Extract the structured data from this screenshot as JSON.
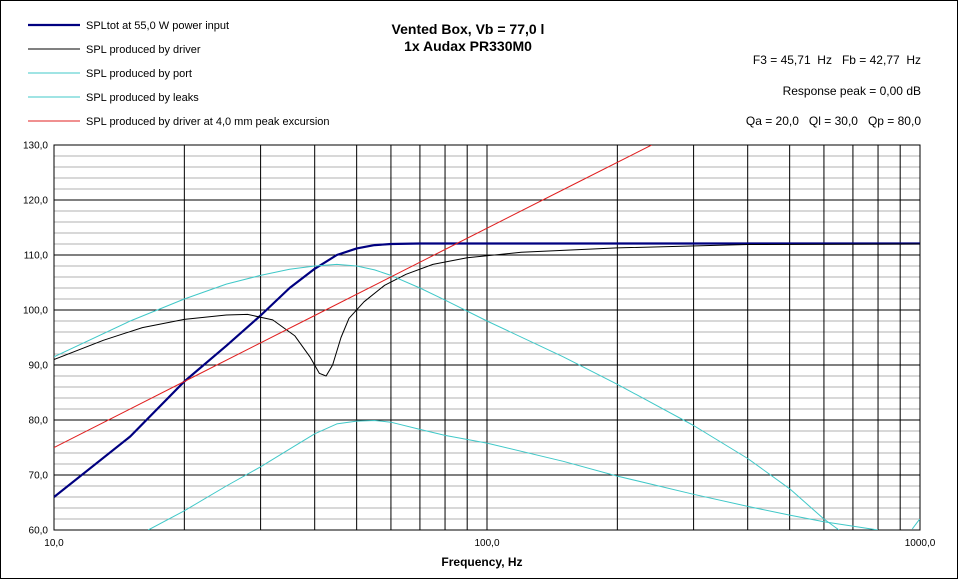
{
  "chart_data": {
    "type": "line",
    "title": "Vented Box, Vb = 77,0 l",
    "subtitle": "1x Audax PR330M0",
    "xlabel": "Frequency, Hz",
    "ylabel": "",
    "x_scale": "log",
    "xlim": [
      10,
      1000
    ],
    "ylim": [
      60,
      130
    ],
    "x_ticks": [
      {
        "value": 10,
        "label": "10,0"
      },
      {
        "value": 100,
        "label": "100,0"
      },
      {
        "value": 1000,
        "label": "1000,0"
      }
    ],
    "y_ticks": [
      {
        "value": 130,
        "label": "130,0"
      },
      {
        "value": 120,
        "label": "120,0"
      },
      {
        "value": 110,
        "label": "110,0"
      },
      {
        "value": 100,
        "label": "100,0"
      },
      {
        "value": 90,
        "label": "90,0"
      },
      {
        "value": 80,
        "label": "80,0"
      },
      {
        "value": 70,
        "label": "70,0"
      },
      {
        "value": 60,
        "label": "60,0"
      }
    ],
    "grid": true,
    "legend_position": "top-left",
    "info_lines": [
      "F3 = 45,71  Hz   Fb = 42,77  Hz",
      "Response peak = 0,00 dB",
      "Qa = 20,0   Ql = 30,0   Qp = 80,0"
    ],
    "series": [
      {
        "name": "SPLtot at 55,0 W power input",
        "color": "#000080",
        "points": [
          [
            10,
            66
          ],
          [
            15,
            77
          ],
          [
            20,
            87
          ],
          [
            25,
            93.5
          ],
          [
            30,
            99
          ],
          [
            35,
            104
          ],
          [
            40,
            107.5
          ],
          [
            45,
            110
          ],
          [
            50,
            111.2
          ],
          [
            55,
            111.8
          ],
          [
            60,
            112
          ],
          [
            70,
            112.1
          ],
          [
            100,
            112.1
          ],
          [
            200,
            112.1
          ],
          [
            500,
            112.1
          ],
          [
            1000,
            112.1
          ]
        ]
      },
      {
        "name": "SPL produced by driver",
        "color": "#000000",
        "points": [
          [
            10,
            91
          ],
          [
            13,
            94.5
          ],
          [
            16,
            96.8
          ],
          [
            20,
            98.3
          ],
          [
            25,
            99.1
          ],
          [
            28,
            99.2
          ],
          [
            32,
            98.2
          ],
          [
            36,
            95.3
          ],
          [
            39,
            91.5
          ],
          [
            41,
            88.5
          ],
          [
            42.5,
            88
          ],
          [
            44,
            90
          ],
          [
            46,
            95
          ],
          [
            48,
            98.5
          ],
          [
            52,
            101.5
          ],
          [
            58,
            104.5
          ],
          [
            65,
            106.5
          ],
          [
            75,
            108.3
          ],
          [
            90,
            109.5
          ],
          [
            120,
            110.5
          ],
          [
            200,
            111.3
          ],
          [
            400,
            111.9
          ],
          [
            1000,
            112
          ]
        ]
      },
      {
        "name": "SPL produced by port",
        "color": "#40C8C8",
        "points": [
          [
            10,
            91.5
          ],
          [
            15,
            98
          ],
          [
            20,
            102
          ],
          [
            25,
            104.7
          ],
          [
            30,
            106.3
          ],
          [
            35,
            107.4
          ],
          [
            40,
            108
          ],
          [
            45,
            108.3
          ],
          [
            50,
            108
          ],
          [
            55,
            107.3
          ],
          [
            60,
            106.3
          ],
          [
            70,
            104
          ],
          [
            80,
            101.8
          ],
          [
            100,
            98
          ],
          [
            150,
            91.5
          ],
          [
            200,
            86.5
          ],
          [
            300,
            79
          ],
          [
            400,
            73
          ],
          [
            500,
            67.5
          ],
          [
            600,
            62
          ],
          [
            650,
            60
          ]
        ]
      },
      {
        "name": "SPL produced by leaks",
        "color": "#40C8C8",
        "points": [
          [
            16.5,
            60
          ],
          [
            20,
            63.5
          ],
          [
            25,
            68
          ],
          [
            30,
            71.5
          ],
          [
            35,
            74.7
          ],
          [
            40,
            77.5
          ],
          [
            45,
            79.3
          ],
          [
            50,
            79.8
          ],
          [
            55,
            79.9
          ],
          [
            60,
            79.6
          ],
          [
            70,
            78.3
          ],
          [
            80,
            77.2
          ],
          [
            100,
            75.8
          ],
          [
            150,
            72.5
          ],
          [
            200,
            69.8
          ],
          [
            300,
            66.5
          ],
          [
            400,
            64.3
          ],
          [
            500,
            62.7
          ],
          [
            600,
            61.5
          ],
          [
            800,
            60
          ]
        ]
      },
      {
        "name": "SPL produced by driver at 4,0 mm peak excursion",
        "color": "#E02020",
        "points": [
          [
            10,
            75
          ],
          [
            20,
            87
          ],
          [
            40,
            99
          ],
          [
            80,
            111
          ],
          [
            160,
            123
          ],
          [
            240,
            130
          ]
        ]
      },
      {
        "name": "",
        "color": "#40C8C8",
        "points": [
          [
            960,
            60.2
          ],
          [
            990,
            61.6
          ],
          [
            1000,
            62
          ]
        ]
      }
    ]
  }
}
